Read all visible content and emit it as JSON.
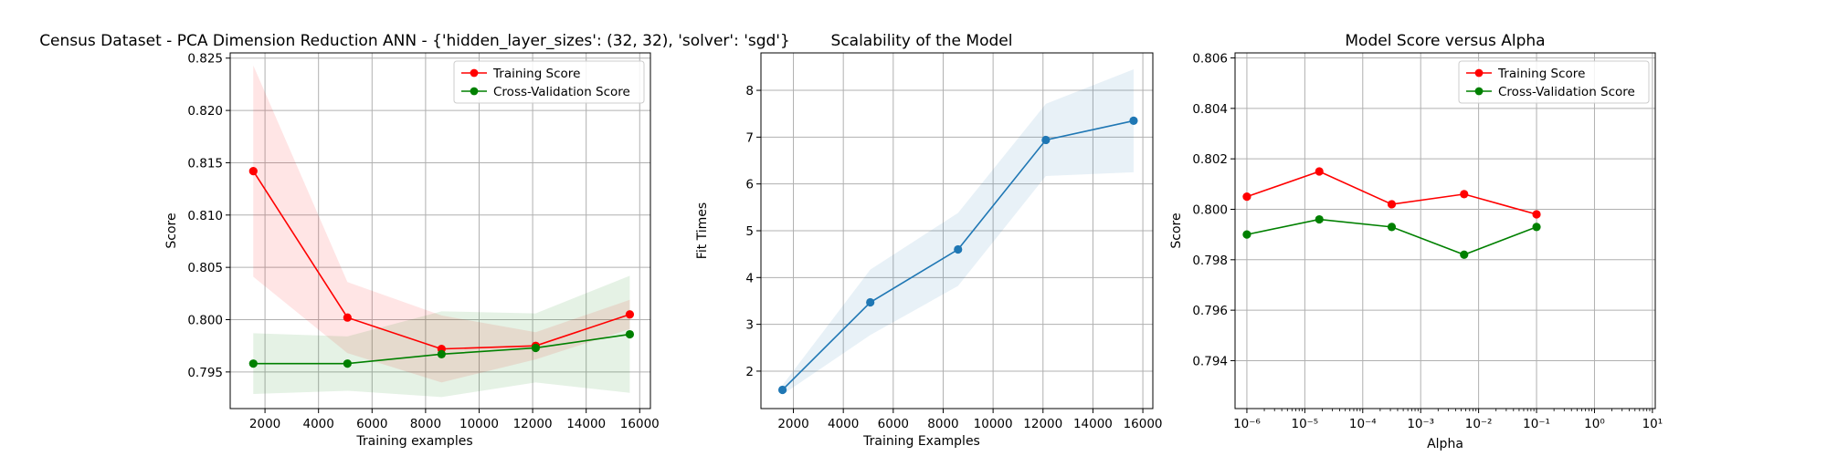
{
  "chart_data": [
    {
      "type": "line",
      "title": "Census Dataset - PCA Dimension Reduction ANN - {'hidden_layer_sizes': (32, 32), 'solver': 'sgd'}",
      "xlabel": "Training examples",
      "ylabel": "Score",
      "xlim": [
        700,
        16400
      ],
      "ylim": [
        0.7915,
        0.8255
      ],
      "x_ticks": [
        2000,
        4000,
        6000,
        8000,
        10000,
        12000,
        14000,
        16000
      ],
      "y_ticks": [
        0.795,
        0.8,
        0.805,
        0.81,
        0.815,
        0.82,
        0.825
      ],
      "grid": true,
      "legend_position": "upper right",
      "x": [
        1563,
        5080,
        8596,
        12113,
        15630
      ],
      "series": [
        {
          "name": "Training Score",
          "color": "#ff0000",
          "values": [
            0.8142,
            0.8002,
            0.7972,
            0.7975,
            0.8005
          ],
          "band_lower": [
            0.8041,
            0.7968,
            0.794,
            0.7962,
            0.7991
          ],
          "band_upper": [
            0.8243,
            0.8036,
            0.8004,
            0.7988,
            0.8019
          ]
        },
        {
          "name": "Cross-Validation Score",
          "color": "#008000",
          "values": [
            0.7958,
            0.7958,
            0.7967,
            0.7973,
            0.7986
          ],
          "band_lower": [
            0.7929,
            0.7932,
            0.7926,
            0.794,
            0.793
          ],
          "band_upper": [
            0.7987,
            0.7984,
            0.8008,
            0.8006,
            0.8042
          ]
        }
      ]
    },
    {
      "type": "line",
      "title": "Scalability of the Model",
      "xlabel": "Training Examples",
      "ylabel": "Fit Times",
      "xlim": [
        700,
        16400
      ],
      "ylim": [
        1.2,
        8.8
      ],
      "x_ticks": [
        2000,
        4000,
        6000,
        8000,
        10000,
        12000,
        14000,
        16000
      ],
      "y_ticks": [
        2,
        3,
        4,
        5,
        6,
        7,
        8
      ],
      "grid": true,
      "x": [
        1563,
        5080,
        8596,
        12113,
        15630
      ],
      "series": [
        {
          "color": "#1f77b4",
          "values": [
            1.6,
            3.47,
            4.6,
            6.94,
            7.35
          ],
          "band_lower": [
            1.5,
            2.77,
            3.82,
            6.17,
            6.25
          ],
          "band_upper": [
            1.7,
            4.17,
            5.38,
            7.71,
            8.45
          ]
        }
      ]
    },
    {
      "type": "line",
      "title": "Model Score versus Alpha",
      "xlabel": "Alpha",
      "ylabel": "Score",
      "x_scale": "log",
      "xlim": [
        1e-06,
        10
      ],
      "ylim": [
        0.7921,
        0.8062
      ],
      "x_ticks": [
        "10⁻⁶",
        "10⁻⁵",
        "10⁻⁴",
        "10⁻³",
        "10⁻²",
        "10⁻¹",
        "10⁰",
        "10¹"
      ],
      "y_ticks": [
        0.794,
        0.796,
        0.798,
        0.8,
        0.802,
        0.804,
        0.806
      ],
      "grid": true,
      "legend_position": "upper right",
      "x": [
        1e-06,
        1.778e-05,
        0.0003162,
        0.005623,
        0.1
      ],
      "series": [
        {
          "name": "Training Score",
          "color": "#ff0000",
          "values": [
            0.8005,
            0.8015,
            0.8002,
            0.8006,
            0.7998
          ]
        },
        {
          "name": "Cross-Validation Score",
          "color": "#008000",
          "values": [
            0.799,
            0.7996,
            0.7993,
            0.7982,
            0.7993
          ]
        }
      ]
    }
  ]
}
